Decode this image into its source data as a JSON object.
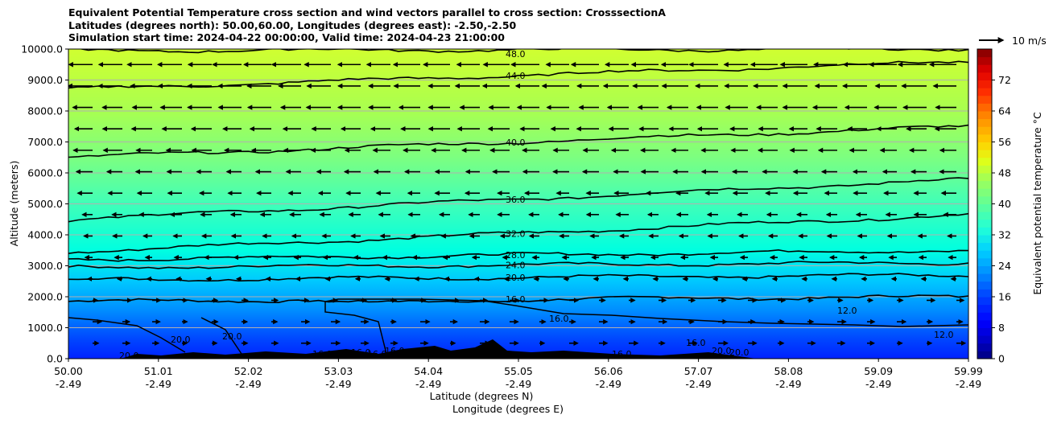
{
  "title_lines": [
    "Equivalent Potential Temperature cross section and wind vectors parallel to cross section: CrosssectionA",
    "Latitudes (degrees north): 50.00,60.00, Longitudes (degrees east): -2.50,-2.50",
    "Simulation start time: 2024-04-22 00:00:00, Valid time: 2024-04-23 21:00:00"
  ],
  "chart_data": {
    "type": "contour",
    "xlabel": "Latitude (degrees N)",
    "xlabel2": "Longitude (degrees E)",
    "ylabel": "Altitude (meters)",
    "x_ticks": [
      {
        "lat": "50.00",
        "lon": "-2.49"
      },
      {
        "lat": "51.01",
        "lon": "-2.49"
      },
      {
        "lat": "52.02",
        "lon": "-2.49"
      },
      {
        "lat": "53.03",
        "lon": "-2.49"
      },
      {
        "lat": "54.04",
        "lon": "-2.49"
      },
      {
        "lat": "55.05",
        "lon": "-2.49"
      },
      {
        "lat": "56.06",
        "lon": "-2.49"
      },
      {
        "lat": "57.07",
        "lon": "-2.49"
      },
      {
        "lat": "58.08",
        "lon": "-2.49"
      },
      {
        "lat": "59.09",
        "lon": "-2.49"
      },
      {
        "lat": "59.99",
        "lon": "-2.49"
      }
    ],
    "xlim": [
      50.0,
      59.99
    ],
    "y_ticks": [
      "0.0",
      "1000.0",
      "2000.0",
      "3000.0",
      "4000.0",
      "5000.0",
      "6000.0",
      "7000.0",
      "8000.0",
      "9000.0",
      "10000.0"
    ],
    "ylim": [
      0,
      10000
    ],
    "grid": "horizontal",
    "colorbar": {
      "label": "Equivalent potential temperature $^\\circ$C",
      "ticks": [
        "0",
        "8",
        "16",
        "24",
        "32",
        "40",
        "48",
        "56",
        "64",
        "72"
      ],
      "range": [
        0,
        80
      ]
    },
    "quiver_key": "10 m/s",
    "contours": [
      {
        "level": 16,
        "label": "16.0",
        "alt_left": 1850,
        "alt_right": 2000
      },
      {
        "level": 20,
        "label": "20.0",
        "alt_left": 2550,
        "alt_right": 2700
      },
      {
        "level": 24,
        "label": "24.0",
        "alt_left": 2950,
        "alt_right": 3100
      },
      {
        "level": 28,
        "label": "28.0",
        "alt_left": 3200,
        "alt_right": 3500
      },
      {
        "level": 32,
        "label": "32.0",
        "alt_left": 3450,
        "alt_right": 4650
      },
      {
        "level": 36,
        "label": "36.0",
        "alt_left": 4500,
        "alt_right": 5800
      },
      {
        "level": 40,
        "label": "40.0",
        "alt_left": 6500,
        "alt_right": 7500
      },
      {
        "level": 44,
        "label": "44.0",
        "alt_left": 8700,
        "alt_right": 9600
      },
      {
        "level": 48,
        "label": "48.0",
        "alt_left": 9950,
        "alt_right": 10000
      }
    ],
    "low_level_labels": [
      "20.0",
      "20.0",
      "20.0",
      "16.0",
      "16.0",
      "16.0",
      "16.0",
      "16.0",
      "16.0",
      "16.0",
      "20.0",
      "20.0",
      "12.0",
      "12.0"
    ]
  }
}
